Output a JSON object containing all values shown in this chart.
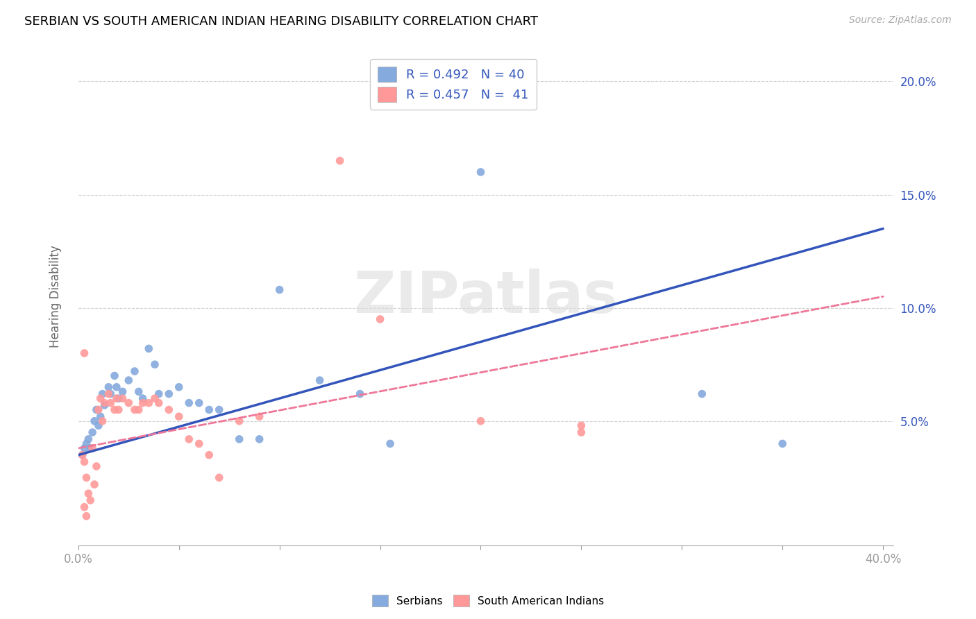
{
  "title": "SERBIAN VS SOUTH AMERICAN INDIAN HEARING DISABILITY CORRELATION CHART",
  "source": "Source: ZipAtlas.com",
  "ylabel": "Hearing Disability",
  "legend1_text": "R = 0.492   N = 40",
  "legend2_text": "R = 0.457   N =  41",
  "legend1_label": "Serbians",
  "legend2_label": "South American Indians",
  "blue_color": "#85AADD",
  "pink_color": "#FF9999",
  "line_blue": "#3355BB",
  "line_pink": "#EE7799",
  "watermark_color": "#DDDDDD",
  "blue_scatter": [
    [
      0.002,
      0.035
    ],
    [
      0.003,
      0.038
    ],
    [
      0.004,
      0.04
    ],
    [
      0.005,
      0.042
    ],
    [
      0.006,
      0.038
    ],
    [
      0.007,
      0.045
    ],
    [
      0.008,
      0.05
    ],
    [
      0.009,
      0.055
    ],
    [
      0.01,
      0.048
    ],
    [
      0.011,
      0.052
    ],
    [
      0.012,
      0.062
    ],
    [
      0.013,
      0.057
    ],
    [
      0.015,
      0.065
    ],
    [
      0.016,
      0.062
    ],
    [
      0.018,
      0.07
    ],
    [
      0.019,
      0.065
    ],
    [
      0.02,
      0.06
    ],
    [
      0.022,
      0.063
    ],
    [
      0.025,
      0.068
    ],
    [
      0.028,
      0.072
    ],
    [
      0.03,
      0.063
    ],
    [
      0.032,
      0.06
    ],
    [
      0.035,
      0.082
    ],
    [
      0.038,
      0.075
    ],
    [
      0.04,
      0.062
    ],
    [
      0.045,
      0.062
    ],
    [
      0.05,
      0.065
    ],
    [
      0.055,
      0.058
    ],
    [
      0.06,
      0.058
    ],
    [
      0.065,
      0.055
    ],
    [
      0.07,
      0.055
    ],
    [
      0.08,
      0.042
    ],
    [
      0.09,
      0.042
    ],
    [
      0.1,
      0.108
    ],
    [
      0.12,
      0.068
    ],
    [
      0.14,
      0.062
    ],
    [
      0.155,
      0.04
    ],
    [
      0.2,
      0.16
    ],
    [
      0.31,
      0.062
    ],
    [
      0.35,
      0.04
    ]
  ],
  "pink_scatter": [
    [
      0.002,
      0.035
    ],
    [
      0.003,
      0.032
    ],
    [
      0.004,
      0.025
    ],
    [
      0.005,
      0.018
    ],
    [
      0.006,
      0.015
    ],
    [
      0.007,
      0.038
    ],
    [
      0.008,
      0.022
    ],
    [
      0.009,
      0.03
    ],
    [
      0.01,
      0.055
    ],
    [
      0.011,
      0.06
    ],
    [
      0.012,
      0.05
    ],
    [
      0.013,
      0.058
    ],
    [
      0.015,
      0.062
    ],
    [
      0.016,
      0.058
    ],
    [
      0.018,
      0.055
    ],
    [
      0.019,
      0.06
    ],
    [
      0.02,
      0.055
    ],
    [
      0.022,
      0.06
    ],
    [
      0.025,
      0.058
    ],
    [
      0.028,
      0.055
    ],
    [
      0.03,
      0.055
    ],
    [
      0.032,
      0.058
    ],
    [
      0.035,
      0.058
    ],
    [
      0.038,
      0.06
    ],
    [
      0.04,
      0.058
    ],
    [
      0.045,
      0.055
    ],
    [
      0.05,
      0.052
    ],
    [
      0.055,
      0.042
    ],
    [
      0.06,
      0.04
    ],
    [
      0.065,
      0.035
    ],
    [
      0.07,
      0.025
    ],
    [
      0.003,
      0.08
    ],
    [
      0.08,
      0.05
    ],
    [
      0.09,
      0.052
    ],
    [
      0.13,
      0.165
    ],
    [
      0.15,
      0.095
    ],
    [
      0.2,
      0.05
    ],
    [
      0.25,
      0.045
    ],
    [
      0.003,
      0.012
    ],
    [
      0.004,
      0.008
    ],
    [
      0.25,
      0.048
    ]
  ],
  "xlim": [
    0.0,
    0.405
  ],
  "ylim": [
    -0.005,
    0.215
  ],
  "xtick_positions": [
    0.0,
    0.05,
    0.1,
    0.15,
    0.2,
    0.25,
    0.3,
    0.35,
    0.4
  ],
  "ytick_vals": [
    0.05,
    0.1,
    0.15,
    0.2
  ],
  "ytick_labels": [
    "5.0%",
    "10.0%",
    "15.0%",
    "20.0%"
  ]
}
